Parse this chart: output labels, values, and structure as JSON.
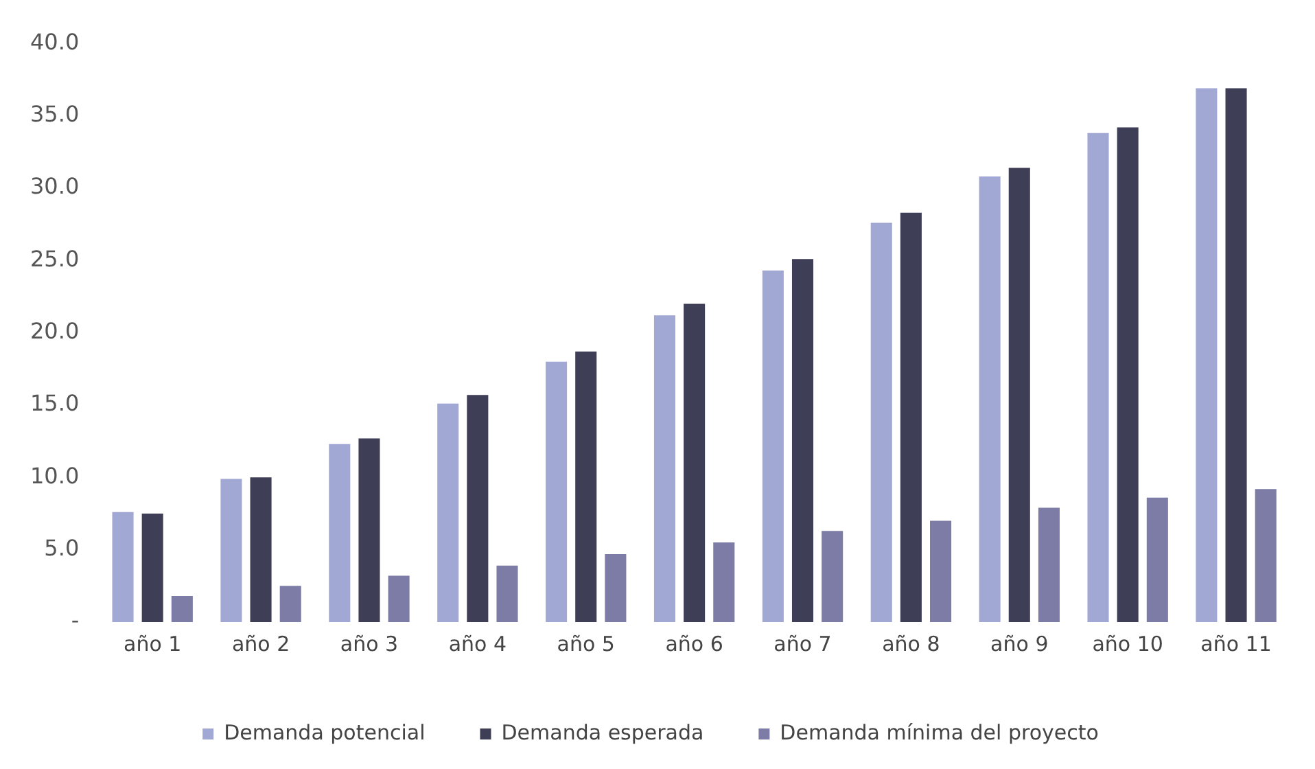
{
  "chart_data": {
    "type": "bar",
    "categories": [
      "año 1",
      "año 2",
      "año 3",
      "año 4",
      "año 5",
      "año 6",
      "año 7",
      "año 8",
      "año 9",
      "año 10",
      "año 11"
    ],
    "series": [
      {
        "name": "Demanda potencial",
        "color": "#a2a8d4",
        "values": [
          7.6,
          9.9,
          12.3,
          15.1,
          18.0,
          21.2,
          24.3,
          27.6,
          30.8,
          33.8,
          36.9
        ]
      },
      {
        "name": "Demanda esperada",
        "color": "#3e3e56",
        "values": [
          7.5,
          10.0,
          12.7,
          15.7,
          18.7,
          22.0,
          25.1,
          28.3,
          31.4,
          34.2,
          36.9
        ]
      },
      {
        "name": "Demanda mínima del proyecto",
        "color": "#7c7ca6",
        "values": [
          1.8,
          2.5,
          3.2,
          3.9,
          4.7,
          5.5,
          6.3,
          7.0,
          7.9,
          8.6,
          9.2
        ]
      }
    ],
    "ylim": [
      0,
      40
    ],
    "yticks": [
      {
        "value": 0,
        "label": "-"
      },
      {
        "value": 5,
        "label": "5.0"
      },
      {
        "value": 10,
        "label": "10.0"
      },
      {
        "value": 15,
        "label": "15.0"
      },
      {
        "value": 20,
        "label": "20.0"
      },
      {
        "value": 25,
        "label": "25.0"
      },
      {
        "value": 30,
        "label": "30.0"
      },
      {
        "value": 35,
        "label": "35.0"
      },
      {
        "value": 40,
        "label": "40.0"
      }
    ],
    "grid": false,
    "legend": "bottom"
  }
}
